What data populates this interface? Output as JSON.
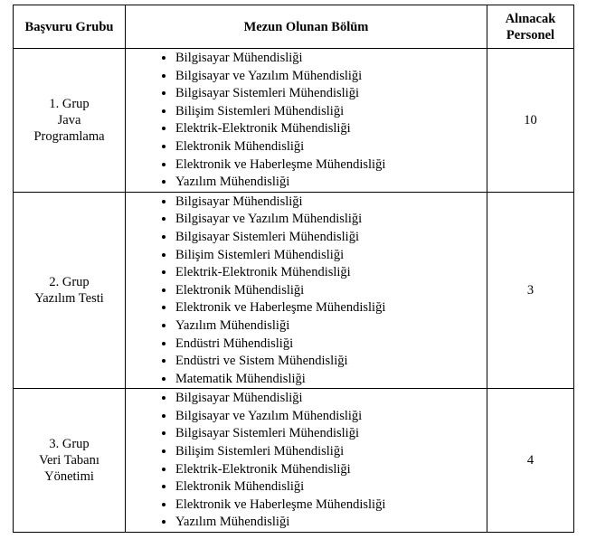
{
  "table": {
    "headers": [
      [
        "Başvuru Grubu"
      ],
      [
        "Mezun Olunan Bölüm"
      ],
      [
        "Alınacak",
        "Personel"
      ]
    ],
    "rows": [
      {
        "group": [
          "1. Grup",
          "Java",
          "Programlama"
        ],
        "departments": [
          "Bilgisayar Mühendisliği",
          "Bilgisayar ve Yazılım Mühendisliği",
          "Bilgisayar Sistemleri Mühendisliği",
          "Bilişim Sistemleri Mühendisliği",
          "Elektrik-Elektronik Mühendisliği",
          "Elektronik Mühendisliği",
          "Elektronik ve Haberleşme Mühendisliği",
          "Yazılım Mühendisliği"
        ],
        "count": 10
      },
      {
        "group": [
          "2. Grup",
          "Yazılım Testi"
        ],
        "departments": [
          "Bilgisayar Mühendisliği",
          "Bilgisayar ve Yazılım Mühendisliği",
          "Bilgisayar Sistemleri Mühendisliği",
          "Bilişim Sistemleri Mühendisliği",
          "Elektrik-Elektronik Mühendisliği",
          "Elektronik Mühendisliği",
          "Elektronik ve Haberleşme Mühendisliği",
          "Yazılım Mühendisliği",
          "Endüstri Mühendisliği",
          "Endüstri ve Sistem Mühendisliği",
          "Matematik Mühendisliği"
        ],
        "count": 3
      },
      {
        "group": [
          "3. Grup",
          "Veri Tabanı",
          "Yönetimi"
        ],
        "departments": [
          "Bilgisayar Mühendisliği",
          "Bilgisayar ve Yazılım Mühendisliği",
          "Bilgisayar Sistemleri Mühendisliği",
          "Bilişim Sistemleri Mühendisliği",
          "Elektrik-Elektronik Mühendisliği",
          "Elektronik Mühendisliği",
          "Elektronik ve Haberleşme Mühendisliği",
          "Yazılım Mühendisliği"
        ],
        "count": 4
      }
    ]
  }
}
